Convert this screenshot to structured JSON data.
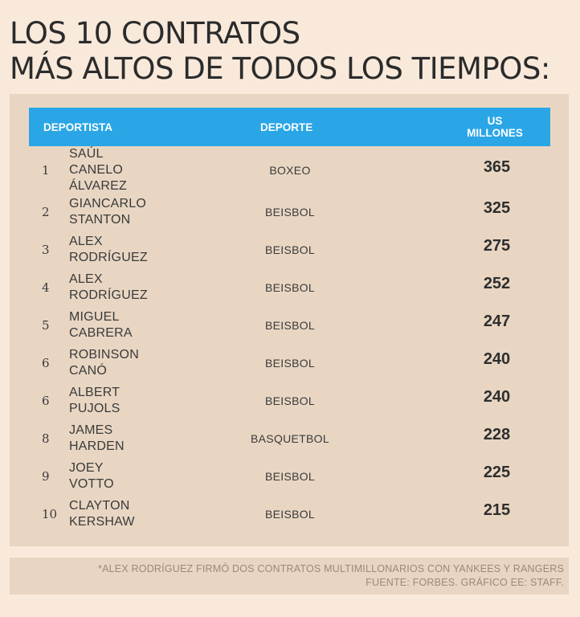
{
  "title": {
    "line1": "LOS 10 CONTRATOS",
    "line2": "MÁS ALTOS DE TODOS LOS TIEMPOS:"
  },
  "table": {
    "headers": {
      "deportista": "DEPORTISTA",
      "deporte": "DEPORTE",
      "us": "US",
      "millones": "MILLONES"
    },
    "rows": [
      {
        "rank": "1",
        "name": [
          "SAÚL",
          "CANELO",
          "ÁLVAREZ"
        ],
        "sport": "BOXEO",
        "value": "365"
      },
      {
        "rank": "2",
        "name": [
          "GIANCARLO",
          "STANTON"
        ],
        "sport": "BEISBOL",
        "value": "325"
      },
      {
        "rank": "3",
        "name": [
          "ALEX",
          "RODRÍGUEZ"
        ],
        "sport": "BEISBOL",
        "value": "275"
      },
      {
        "rank": "4",
        "name": [
          "ALEX",
          "RODRÍGUEZ"
        ],
        "sport": "BEISBOL",
        "value": "252"
      },
      {
        "rank": "5",
        "name": [
          "MIGUEL",
          "CABRERA"
        ],
        "sport": "BEISBOL",
        "value": "247"
      },
      {
        "rank": "6",
        "name": [
          "ROBINSON",
          "CANÓ"
        ],
        "sport": "BEISBOL",
        "value": "240"
      },
      {
        "rank": "6",
        "name": [
          "ALBERT",
          "PUJOLS"
        ],
        "sport": "BEISBOL",
        "value": "240"
      },
      {
        "rank": "8",
        "name": [
          "JAMES",
          "HARDEN"
        ],
        "sport": "BASQUETBOL",
        "value": "228"
      },
      {
        "rank": "9",
        "name": [
          "JOEY",
          "VOTTO"
        ],
        "sport": "BEISBOL",
        "value": "225"
      },
      {
        "rank": "10",
        "name": [
          "CLAYTON",
          "KERSHAW"
        ],
        "sport": "BEISBOL",
        "value": "215"
      }
    ]
  },
  "footnote": {
    "line1": "*ALEX RODRÍGUEZ FIRMÓ DOS CONTRATOS MULTIMILLONARIOS CON YANKEES Y RANGERS",
    "line2": "FUENTE: FORBES. GRÁFICO EE: STAFF."
  }
}
